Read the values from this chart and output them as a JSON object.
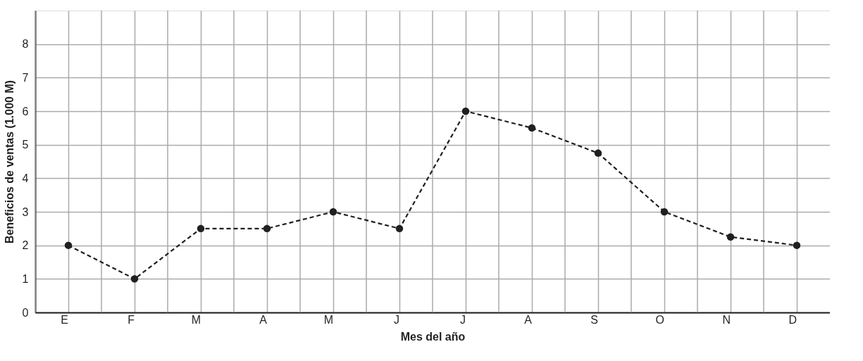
{
  "chart_data": {
    "type": "line",
    "xlabel": "Mes del año",
    "ylabel": "Beneficios de ventas (1.000 M)",
    "categories": [
      "E",
      "F",
      "M",
      "A",
      "M",
      "J",
      "J",
      "A",
      "S",
      "O",
      "N",
      "D"
    ],
    "series": [
      {
        "color": "#231f20",
        "values": [
          2,
          1,
          2.5,
          2.5,
          3,
          2.5,
          6,
          5.5,
          4.75,
          3,
          2.25,
          2
        ]
      }
    ],
    "ylim": [
      0,
      9
    ],
    "yticks": [
      0,
      1,
      2,
      3,
      4,
      5,
      6,
      7,
      8
    ],
    "grid": true,
    "marker": "circle",
    "line_style": "dashed"
  }
}
